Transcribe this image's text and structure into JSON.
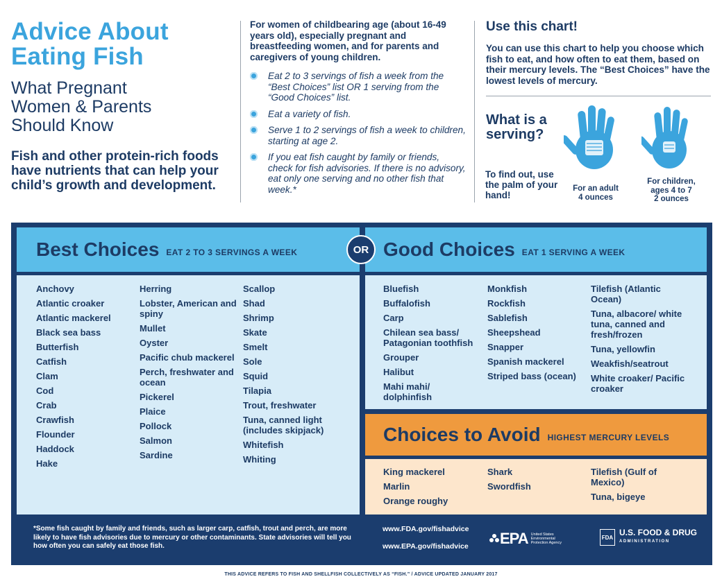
{
  "header": {
    "title_line1": "Advice About",
    "title_line2": "Eating Fish",
    "subtitle_line1": "What Pregnant",
    "subtitle_line2": "Women & Parents",
    "subtitle_line3": "Should Know",
    "intro": "Fish and other protein-rich foods have nutrients that can help your child’s growth and development."
  },
  "advice": {
    "audience": "For women of childbearing age (about 16-49 years old), especially pregnant and breastfeeding women, and for parents and caregivers of young children.",
    "tips": [
      "Eat 2 to 3 servings of fish a week from the “Best Choices” list OR 1 serving from the “Good Choices” list.",
      "Eat a variety of fish.",
      "Serve 1 to 2 servings of fish a week to children, starting at age 2.",
      "If you eat fish caught by family or friends, check for fish advisories. If there is no advisory, eat only one serving and no other fish that week.*"
    ]
  },
  "use_chart": {
    "title": "Use this chart!",
    "body": "You can use this chart to help you choose which fish to eat, and how often to eat them, based on their mercury levels. The “Best Choices” have the lowest levels of mercury.",
    "serving_title": "What is a serving?",
    "serving_body": "To find out, use the palm of your hand!",
    "adult_caption_1": "For an adult",
    "adult_caption_2": "4 ounces",
    "child_caption_1": "For children,",
    "child_caption_2": "ages 4 to 7",
    "child_caption_3": "2 ounces"
  },
  "best": {
    "title": "Best Choices",
    "note": "EAT 2 TO 3 SERVINGS A WEEK",
    "col1": [
      "Anchovy",
      "Atlantic croaker",
      "Atlantic mackerel",
      "Black sea bass",
      "Butterfish",
      "Catfish",
      "Clam",
      "Cod",
      "Crab",
      "Crawfish",
      "Flounder",
      "Haddock",
      "Hake"
    ],
    "col2": [
      "Herring",
      "Lobster, American and spiny",
      "Mullet",
      "Oyster",
      "Pacific chub mackerel",
      "Perch, freshwater and ocean",
      "Pickerel",
      "Plaice",
      "Pollock",
      "Salmon",
      "Sardine"
    ],
    "col3": [
      "Scallop",
      "Shad",
      "Shrimp",
      "Skate",
      "Smelt",
      "Sole",
      "Squid",
      "Tilapia",
      "Trout, freshwater",
      "Tuna, canned light (includes skipjack)",
      "Whitefish",
      "Whiting"
    ]
  },
  "or_label": "OR",
  "good": {
    "title": "Good Choices",
    "note": "EAT 1 SERVING A WEEK",
    "col1": [
      "Bluefish",
      "Buffalofish",
      "Carp",
      "Chilean sea bass/ Patagonian toothfish",
      "Grouper",
      "Halibut",
      "Mahi mahi/ dolphinfish"
    ],
    "col2": [
      "Monkfish",
      "Rockfish",
      "Sablefish",
      "Sheepshead",
      "Snapper",
      "Spanish mackerel",
      "Striped bass (ocean)"
    ],
    "col3": [
      "Tilefish (Atlantic Ocean)",
      "Tuna, albacore/ white tuna, canned and fresh/frozen",
      "Tuna, yellowfin",
      "Weakfish/seatrout",
      "White croaker/ Pacific croaker"
    ]
  },
  "avoid": {
    "title": "Choices to Avoid",
    "note": "HIGHEST MERCURY LEVELS",
    "col1": [
      "King mackerel",
      "Marlin",
      "Orange roughy"
    ],
    "col2": [
      "Shark",
      "Swordfish"
    ],
    "col3": [
      "Tilefish (Gulf of Mexico)",
      "Tuna, bigeye"
    ]
  },
  "footer": {
    "footnote": "*Some fish caught by family and friends, such as larger carp, catfish, trout and perch, are more likely to have fish advisories due to mercury or other contaminants. State advisories will tell you how often you can safely eat those fish.",
    "fda_link": "www.FDA.gov/fishadvice",
    "epa_link": "www.EPA.gov/fishadvice",
    "epa_mark": "EPA",
    "epa_small": "United States Environmental Protection Agency",
    "fda_box": "FDA",
    "fda_name": "U.S. FOOD & DRUG",
    "fda_admin": "ADMINISTRATION",
    "bottom_note": "THIS ADVICE REFERS TO FISH AND SHELLFISH COLLECTIVELY AS “FISH.” / ADVICE UPDATED JANUARY 2017"
  },
  "colors": {
    "brand_blue": "#3ba4dd",
    "navy": "#1b3d6e",
    "header_blue": "#5bbde9",
    "light_blue": "#d7ecf8",
    "avoid_orange": "#ef9a3e",
    "avoid_light": "#fde6cc"
  }
}
